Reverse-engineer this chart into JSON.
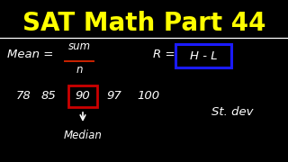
{
  "title": "SAT Math Part 44",
  "title_color": "#FFFF00",
  "bg_color": "#000000",
  "white": "#FFFFFF",
  "red_color": "#CC0000",
  "blue_color": "#1a1aff",
  "fraction_bar_color": "#CC2200",
  "mean_text": "Mean = ",
  "sum_text": "sum",
  "n_text": "n",
  "r_text": "R = ",
  "hl_text": "H - L",
  "numbers": [
    "78",
    "85",
    "90",
    "97",
    "100"
  ],
  "median_num": "90",
  "median_label": "Median",
  "stdev_label": "St. dev",
  "font_size_title": 20,
  "font_size_body": 9.5,
  "font_size_nums": 9.5
}
